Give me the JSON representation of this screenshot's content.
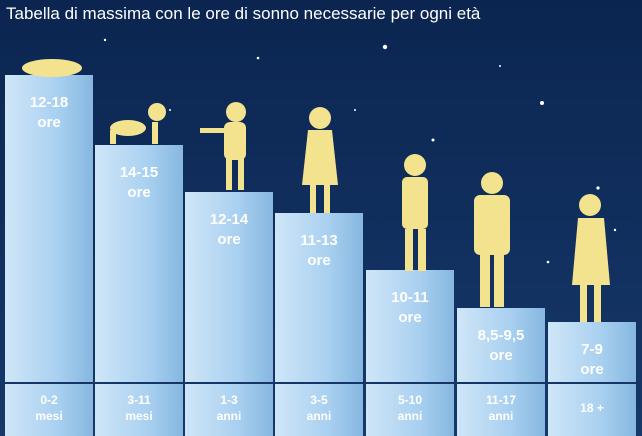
{
  "title": "Tabella di massima con le ore di sonno necessarie per ogni età",
  "columns": [
    {
      "hours": "12-18",
      "unit": "ore",
      "age": "0-2",
      "age_unit": "mesi"
    },
    {
      "hours": "14-15",
      "unit": "ore",
      "age": "3-11",
      "age_unit": "mesi"
    },
    {
      "hours": "12-14",
      "unit": "ore",
      "age": "1-3",
      "age_unit": "anni"
    },
    {
      "hours": "11-13",
      "unit": "ore",
      "age": "3-5",
      "age_unit": "anni"
    },
    {
      "hours": "10-11",
      "unit": "ore",
      "age": "5-10",
      "age_unit": "anni"
    },
    {
      "hours": "8,5-9,5",
      "unit": "ore",
      "age": "11-17",
      "age_unit": "anni"
    },
    {
      "hours": "7-9",
      "unit": "ore",
      "age": "18 +"
    }
  ]
}
